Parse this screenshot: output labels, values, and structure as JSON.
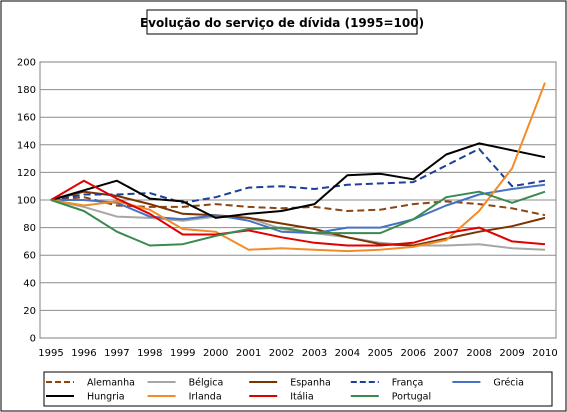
{
  "chart_data": {
    "type": "line",
    "title": "Evolução do serviço de dívida (1995=100)",
    "xlabel": "",
    "ylabel": "",
    "ylim": [
      0,
      200
    ],
    "yticks": [
      0,
      20,
      40,
      60,
      80,
      100,
      120,
      140,
      160,
      180,
      200
    ],
    "grid": "horizontal",
    "legend_position": "bottom",
    "x": [
      "1995",
      "1996",
      "1997",
      "1998",
      "1999",
      "2000",
      "2001",
      "2002",
      "2003",
      "2004",
      "2005",
      "2006",
      "2007",
      "2008",
      "2009",
      "2010"
    ],
    "series": [
      {
        "name": "Alemanha",
        "color": "#8B4513",
        "dash": "dashed",
        "values": [
          100,
          102,
          96,
          95,
          95,
          97,
          95,
          94,
          95,
          92,
          93,
          97,
          99,
          97,
          94,
          89
        ]
      },
      {
        "name": "Bélgica",
        "color": "#A6A6A6",
        "dash": "solid",
        "values": [
          100,
          95,
          88,
          87,
          85,
          88,
          87,
          79,
          76,
          73,
          69,
          67,
          67,
          68,
          65,
          64
        ]
      },
      {
        "name": "Espanha",
        "color": "#7B3300",
        "dash": "solid",
        "values": [
          100,
          106,
          103,
          97,
          90,
          89,
          87,
          83,
          79,
          73,
          68,
          67,
          72,
          77,
          81,
          87
        ]
      },
      {
        "name": "França",
        "color": "#1F3F99",
        "dash": "dashed",
        "values": [
          100,
          104,
          104,
          105,
          98,
          102,
          109,
          110,
          108,
          111,
          112,
          113,
          125,
          137,
          110,
          114
        ]
      },
      {
        "name": "Grécia",
        "color": "#4472C4",
        "dash": "solid",
        "values": [
          100,
          100,
          98,
          88,
          86,
          89,
          85,
          77,
          76,
          80,
          80,
          86,
          96,
          104,
          108,
          111
        ]
      },
      {
        "name": "Hungria",
        "color": "#000000",
        "dash": "solid",
        "values": [
          100,
          107,
          114,
          101,
          99,
          87,
          90,
          92,
          97,
          118,
          119,
          115,
          133,
          141,
          136,
          131
        ]
      },
      {
        "name": "Irlanda",
        "color": "#F28C28",
        "dash": "solid",
        "values": [
          100,
          96,
          99,
          93,
          79,
          77,
          64,
          65,
          64,
          63,
          64,
          66,
          71,
          92,
          123,
          185
        ]
      },
      {
        "name": "Itália",
        "color": "#E00000",
        "dash": "solid",
        "values": [
          100,
          114,
          101,
          90,
          75,
          75,
          78,
          73,
          69,
          67,
          67,
          69,
          76,
          80,
          70,
          68
        ]
      },
      {
        "name": "Portugal",
        "color": "#3A8A50",
        "dash": "solid",
        "values": [
          100,
          92,
          77,
          67,
          68,
          74,
          79,
          80,
          76,
          76,
          76,
          86,
          102,
          106,
          98,
          106
        ]
      }
    ]
  }
}
